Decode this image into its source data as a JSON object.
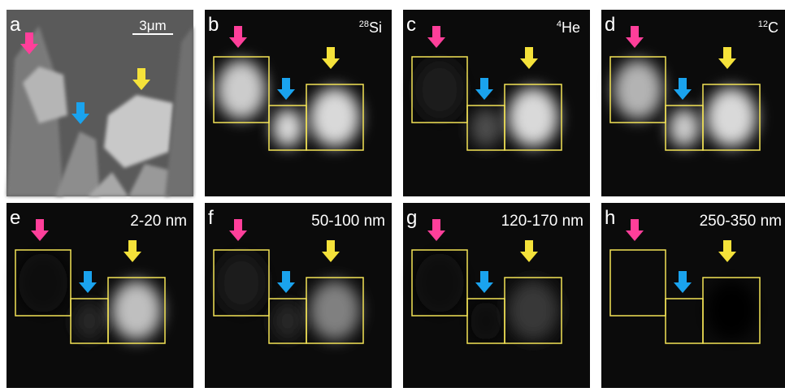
{
  "panels": [
    {
      "letter": "a",
      "scale_bar": "3μm"
    },
    {
      "letter": "b",
      "isotope_mass": "28",
      "isotope_element": "Si"
    },
    {
      "letter": "c",
      "isotope_mass": "4",
      "isotope_element": "He"
    },
    {
      "letter": "d",
      "isotope_mass": "12",
      "isotope_element": "C"
    },
    {
      "letter": "e",
      "label": "2-20 nm"
    },
    {
      "letter": "f",
      "label": "50-100 nm"
    },
    {
      "letter": "g",
      "label": "120-170 nm"
    },
    {
      "letter": "h",
      "label": "250-350 nm"
    }
  ]
}
